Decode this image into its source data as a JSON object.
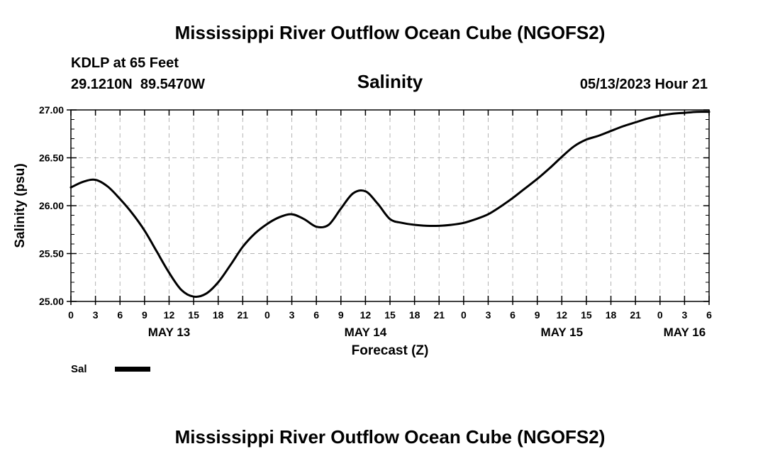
{
  "page": {
    "title": "Mississippi River Outflow Ocean Cube (NGOFS2)",
    "footer_title": "Mississippi River Outflow Ocean Cube (NGOFS2)"
  },
  "header": {
    "station": "KDLP at 65 Feet",
    "coords": "29.1210N  89.5470W",
    "datetime": "05/13/2023 Hour 21"
  },
  "legend": {
    "label": "Sal",
    "color": "#000000"
  },
  "chart_data": {
    "type": "line",
    "title": "Salinity",
    "xlabel": "Forecast (Z)",
    "ylabel": "Salinity (psu)",
    "ylim": [
      25.0,
      27.0
    ],
    "y_ticks": [
      25.0,
      25.5,
      26.0,
      26.5,
      27.0
    ],
    "y_tick_labels": [
      "25.00",
      "25.50",
      "26.00",
      "26.50",
      "27.00"
    ],
    "xlim_hours": [
      0,
      78
    ],
    "x_tick_hours": [
      0,
      3,
      6,
      9,
      12,
      15,
      18,
      21,
      24,
      27,
      30,
      33,
      36,
      39,
      42,
      45,
      48,
      51,
      54,
      57,
      60,
      63,
      66,
      69,
      72,
      75,
      78
    ],
    "x_tick_labels": [
      "0",
      "3",
      "6",
      "9",
      "12",
      "15",
      "18",
      "21",
      "0",
      "3",
      "6",
      "9",
      "12",
      "15",
      "18",
      "21",
      "0",
      "3",
      "6",
      "9",
      "12",
      "15",
      "18",
      "21",
      "0",
      "3",
      "6"
    ],
    "day_labels": [
      {
        "hour": 12,
        "label": "MAY 13"
      },
      {
        "hour": 36,
        "label": "MAY 14"
      },
      {
        "hour": 60,
        "label": "MAY 15"
      },
      {
        "hour": 75,
        "label": "MAY 16"
      }
    ],
    "grid": true,
    "series": [
      {
        "name": "Sal",
        "x_hours": [
          0,
          1.5,
          3,
          4.5,
          6,
          7.5,
          9,
          10.5,
          12,
          13.5,
          15,
          16.5,
          18,
          19.5,
          21,
          22.5,
          24,
          25.5,
          27,
          28.5,
          30,
          31.5,
          33,
          34.5,
          36,
          37.5,
          39,
          40.5,
          42,
          43.5,
          45,
          46.5,
          48,
          49.5,
          51,
          52.5,
          54,
          55.5,
          57,
          58.5,
          60,
          61.5,
          63,
          64.5,
          66,
          67.5,
          69,
          70.5,
          72,
          73.5,
          75,
          76.5,
          78
        ],
        "values": [
          26.19,
          26.25,
          26.27,
          26.2,
          26.07,
          25.92,
          25.74,
          25.52,
          25.3,
          25.12,
          25.05,
          25.08,
          25.2,
          25.38,
          25.57,
          25.71,
          25.81,
          25.88,
          25.91,
          25.86,
          25.78,
          25.8,
          25.97,
          26.13,
          26.15,
          26.02,
          25.86,
          25.82,
          25.8,
          25.79,
          25.79,
          25.8,
          25.82,
          25.86,
          25.91,
          25.99,
          26.08,
          26.18,
          26.28,
          26.39,
          26.51,
          26.62,
          26.69,
          26.73,
          26.78,
          26.83,
          26.87,
          26.91,
          26.94,
          26.96,
          26.97,
          26.98,
          26.98
        ]
      }
    ]
  }
}
